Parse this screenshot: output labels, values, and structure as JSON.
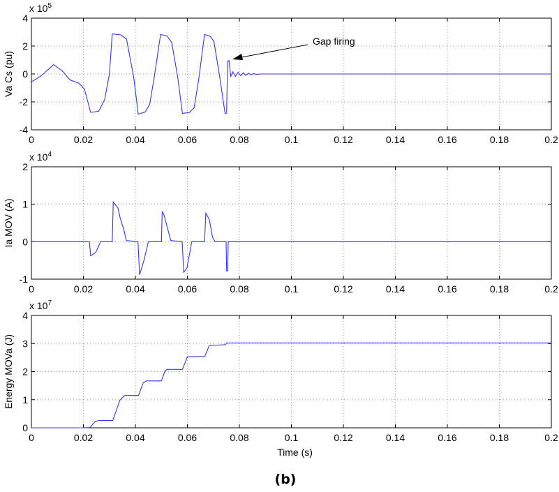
{
  "caption": "(b)",
  "chart_data": [
    {
      "type": "line",
      "ylabel": "Va Cs (pu)",
      "exponent_base": "x 10",
      "exponent": "5",
      "xlim": [
        0,
        0.2
      ],
      "ylim": [
        -4,
        4
      ],
      "xticks": [
        "0",
        "0.02",
        "0.04",
        "0.06",
        "0.08",
        "0.1",
        "0.12",
        "0.14",
        "0.16",
        "0.18",
        "0.2"
      ],
      "yticks": [
        "-4",
        "-2",
        "0",
        "2",
        "4"
      ],
      "grid": true,
      "color": "#3333ff",
      "annotation": {
        "text": "Gap firing",
        "x": 0.076,
        "y": 0.95
      },
      "x": [
        0,
        0.004,
        0.0085,
        0.012,
        0.0148,
        0.0183,
        0.0204,
        0.0228,
        0.0259,
        0.0282,
        0.03,
        0.0311,
        0.0344,
        0.0366,
        0.0393,
        0.0411,
        0.0437,
        0.0455,
        0.0473,
        0.0497,
        0.0522,
        0.054,
        0.0563,
        0.0581,
        0.0608,
        0.0626,
        0.0644,
        0.0666,
        0.0688,
        0.0702,
        0.0724,
        0.0745,
        0.0751,
        0.0755,
        0.076,
        0.0767,
        0.0775,
        0.0785,
        0.0795,
        0.0805,
        0.0815,
        0.0825,
        0.0835,
        0.0845,
        0.0855,
        0.0865,
        0.088,
        0.2
      ],
      "y": [
        -0.58,
        -0.1,
        0.67,
        0.2,
        -0.42,
        -0.67,
        -1.08,
        -2.75,
        -2.67,
        -1.83,
        0,
        2.87,
        2.8,
        2.5,
        -0.17,
        -2.87,
        -2.73,
        -2.17,
        -0.17,
        2.83,
        2.72,
        2.25,
        -0.25,
        -2.83,
        -2.75,
        -2.42,
        -0.33,
        2.83,
        2.7,
        2.33,
        -0.17,
        -2.83,
        -2.8,
        0.92,
        0.97,
        -0.17,
        0.15,
        -0.18,
        0.12,
        -0.13,
        0.09,
        -0.1,
        0.06,
        -0.06,
        0.03,
        -0.03,
        0,
        0
      ]
    },
    {
      "type": "line",
      "ylabel": "Ia MOV (A)",
      "exponent_base": "x 10",
      "exponent": "4",
      "xlim": [
        0,
        0.2
      ],
      "ylim": [
        -1,
        2
      ],
      "xticks": [
        "0",
        "0.02",
        "0.04",
        "0.06",
        "0.08",
        "0.1",
        "0.12",
        "0.14",
        "0.16",
        "0.18",
        "0.2"
      ],
      "yticks": [
        "-1",
        "0",
        "1",
        "2"
      ],
      "grid": true,
      "color": "#3333ff",
      "x": [
        0,
        0.0223,
        0.0228,
        0.0248,
        0.0266,
        0.0311,
        0.0315,
        0.0333,
        0.0342,
        0.0356,
        0.0365,
        0.041,
        0.0416,
        0.0433,
        0.045,
        0.05,
        0.0503,
        0.0509,
        0.0523,
        0.0536,
        0.058,
        0.0586,
        0.0599,
        0.0617,
        0.0666,
        0.0671,
        0.0684,
        0.0697,
        0.0706,
        0.0749,
        0.0751,
        0.0755,
        0.0757,
        0.2
      ],
      "y": [
        0,
        0,
        -0.375,
        -0.28,
        0,
        0,
        1.06,
        0.9,
        0.62,
        0.31,
        0.03,
        0,
        -0.88,
        -0.5,
        0,
        0,
        0.8,
        0.74,
        0.375,
        0.03,
        0,
        -0.82,
        -0.69,
        0,
        0,
        0.76,
        0.6,
        0.12,
        0,
        0,
        -0.78,
        -0.78,
        0,
        0
      ]
    },
    {
      "type": "line",
      "ylabel": "Energy MOVa (J)",
      "xlabel": "Time (s)",
      "exponent_base": "x 10",
      "exponent": "7",
      "xlim": [
        0,
        0.2
      ],
      "ylim": [
        0,
        4
      ],
      "xticks": [
        "0",
        "0.02",
        "0.04",
        "0.06",
        "0.08",
        "0.1",
        "0.12",
        "0.14",
        "0.16",
        "0.18",
        "0.2"
      ],
      "yticks": [
        "0",
        "1",
        "2",
        "3",
        "4"
      ],
      "grid": true,
      "color": "#3333ff",
      "x": [
        0,
        0.02,
        0.0225,
        0.0246,
        0.026,
        0.0313,
        0.034,
        0.0358,
        0.0412,
        0.043,
        0.0443,
        0.05,
        0.0515,
        0.0524,
        0.0581,
        0.06,
        0.0667,
        0.0684,
        0.0747,
        0.0751,
        0.2
      ],
      "y": [
        0,
        0,
        0.01,
        0.23,
        0.26,
        0.26,
        0.98,
        1.15,
        1.15,
        1.6,
        1.67,
        1.67,
        2.05,
        2.08,
        2.08,
        2.53,
        2.54,
        2.93,
        2.96,
        3.02,
        3.02
      ]
    }
  ]
}
